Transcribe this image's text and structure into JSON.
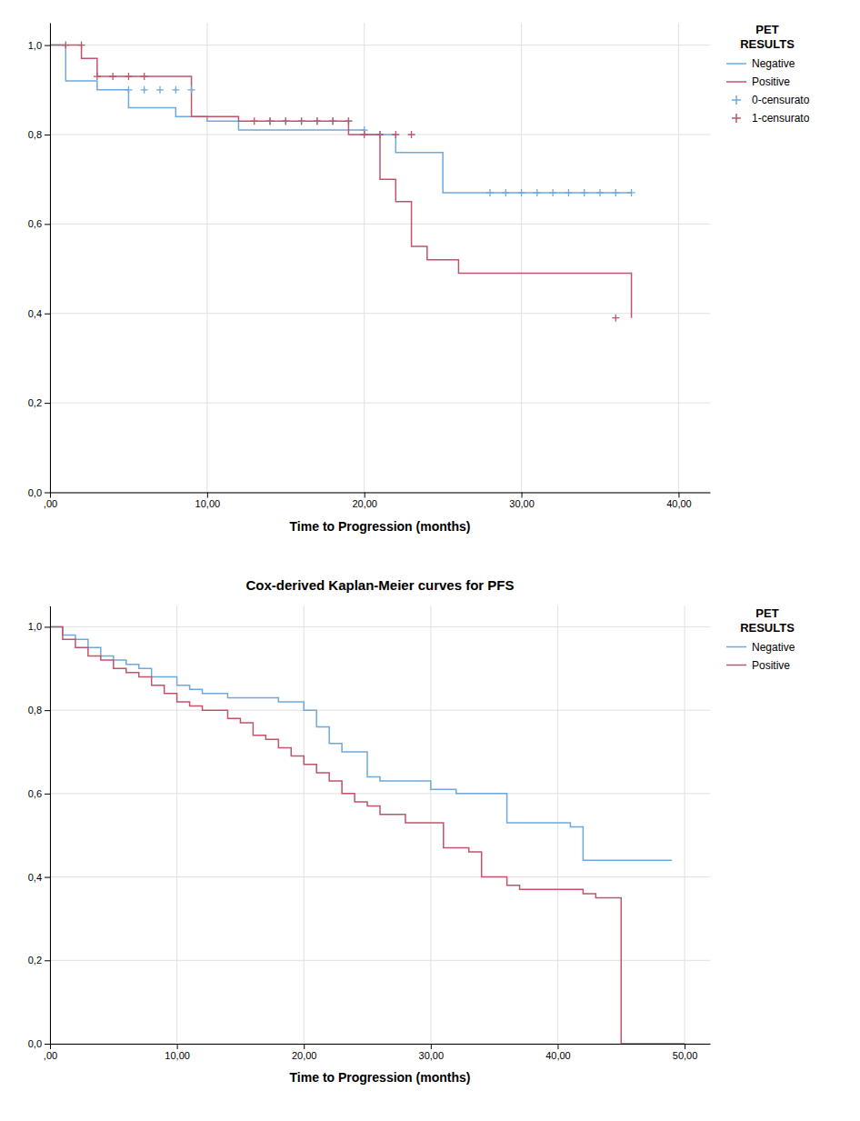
{
  "chart_data": [
    {
      "type": "step",
      "xlabel": "Time to Progression (months)",
      "xlim": [
        0,
        42
      ],
      "ylim": [
        0,
        1.05
      ],
      "xticks": [
        {
          "value": 0,
          "label": ",00"
        },
        {
          "value": 10,
          "label": "10,00"
        },
        {
          "value": 20,
          "label": "20,00"
        },
        {
          "value": 30,
          "label": "30,00"
        },
        {
          "value": 40,
          "label": "40,00"
        }
      ],
      "yticks": [
        {
          "value": 0.0,
          "label": "0,0"
        },
        {
          "value": 0.2,
          "label": "0,2"
        },
        {
          "value": 0.4,
          "label": "0,4"
        },
        {
          "value": 0.6,
          "label": "0,6"
        },
        {
          "value": 0.8,
          "label": "0,8"
        },
        {
          "value": 1.0,
          "label": "1,0"
        }
      ],
      "grid": true,
      "legend": "right",
      "legend_title": "PET\nRESULTS",
      "series": [
        {
          "name": "Negative",
          "color": "#6fa8dc",
          "x": [
            0,
            1,
            1,
            3,
            3,
            5,
            5,
            8,
            8,
            10,
            10,
            12,
            12,
            18,
            18,
            20,
            20,
            22,
            22,
            25,
            25,
            27,
            27,
            37
          ],
          "values": [
            1.0,
            1.0,
            0.92,
            0.92,
            0.9,
            0.9,
            0.86,
            0.86,
            0.84,
            0.84,
            0.83,
            0.83,
            0.81,
            0.81,
            0.81,
            0.81,
            0.8,
            0.8,
            0.76,
            0.76,
            0.67,
            0.67,
            0.67,
            0.67
          ]
        },
        {
          "name": "Positive",
          "color": "#c0546a",
          "x": [
            0,
            2,
            2,
            3,
            3,
            4,
            4,
            5,
            5,
            9,
            9,
            11,
            11,
            12,
            12,
            13,
            13,
            18,
            18,
            19,
            19,
            20,
            20,
            21,
            21,
            22,
            22,
            23,
            23,
            24,
            24,
            26,
            26,
            36,
            36,
            37
          ],
          "values": [
            1.0,
            1.0,
            0.97,
            0.97,
            0.93,
            0.93,
            0.93,
            0.93,
            0.93,
            0.93,
            0.84,
            0.84,
            0.84,
            0.84,
            0.83,
            0.83,
            0.83,
            0.83,
            0.83,
            0.83,
            0.8,
            0.8,
            0.8,
            0.8,
            0.7,
            0.7,
            0.65,
            0.65,
            0.55,
            0.55,
            0.52,
            0.52,
            0.49,
            0.49,
            0.49,
            0.39
          ]
        },
        {
          "name": "0-censurato",
          "type": "scatter",
          "marker": "plus",
          "color": "#6fa8dc",
          "x": [
            5,
            6,
            7,
            8,
            9,
            14,
            15,
            16,
            17,
            18,
            19,
            20,
            21,
            28,
            29,
            30,
            31,
            32,
            33,
            34,
            35,
            36,
            37
          ],
          "values": [
            0.9,
            0.9,
            0.9,
            0.9,
            0.9,
            0.83,
            0.83,
            0.83,
            0.83,
            0.83,
            0.83,
            0.81,
            0.8,
            0.67,
            0.67,
            0.67,
            0.67,
            0.67,
            0.67,
            0.67,
            0.67,
            0.67,
            0.67
          ]
        },
        {
          "name": "1-censurato",
          "type": "scatter",
          "marker": "plus",
          "color": "#c0546a",
          "x": [
            1,
            2,
            3,
            4,
            5,
            6,
            13,
            14,
            15,
            16,
            17,
            18,
            19,
            20,
            21,
            22,
            23,
            36
          ],
          "values": [
            1.0,
            1.0,
            0.93,
            0.93,
            0.93,
            0.93,
            0.83,
            0.83,
            0.83,
            0.83,
            0.83,
            0.83,
            0.83,
            0.8,
            0.8,
            0.8,
            0.8,
            0.39
          ]
        }
      ]
    },
    {
      "type": "step",
      "title": "Cox-derived Kaplan-Meier curves for PFS",
      "xlabel": "Time to Progression (months)",
      "xlim": [
        0,
        52
      ],
      "ylim": [
        0,
        1.05
      ],
      "xticks": [
        {
          "value": 0,
          "label": ",00"
        },
        {
          "value": 10,
          "label": "10,00"
        },
        {
          "value": 20,
          "label": "20,00"
        },
        {
          "value": 30,
          "label": "30,00"
        },
        {
          "value": 40,
          "label": "40,00"
        },
        {
          "value": 50,
          "label": "50,00"
        }
      ],
      "yticks": [
        {
          "value": 0.0,
          "label": "0,0"
        },
        {
          "value": 0.2,
          "label": "0,2"
        },
        {
          "value": 0.4,
          "label": "0,4"
        },
        {
          "value": 0.6,
          "label": "0,6"
        },
        {
          "value": 0.8,
          "label": "0,8"
        },
        {
          "value": 1.0,
          "label": "1,0"
        }
      ],
      "grid": true,
      "legend": "right",
      "legend_title": "PET\nRESULTS",
      "series": [
        {
          "name": "Negative",
          "color": "#6fa8dc",
          "x": [
            0,
            1,
            1,
            2,
            2,
            3,
            3,
            4,
            4,
            5,
            5,
            6,
            6,
            7,
            7,
            8,
            8,
            10,
            10,
            11,
            11,
            12,
            12,
            14,
            14,
            15,
            15,
            18,
            18,
            20,
            20,
            21,
            21,
            22,
            22,
            23,
            23,
            25,
            25,
            26,
            26,
            28,
            28,
            30,
            30,
            32,
            32,
            36,
            36,
            41,
            41,
            42,
            42,
            43,
            43,
            47,
            47,
            48,
            48,
            49
          ],
          "values": [
            1.0,
            1.0,
            0.98,
            0.98,
            0.97,
            0.97,
            0.95,
            0.95,
            0.93,
            0.93,
            0.92,
            0.92,
            0.91,
            0.91,
            0.9,
            0.9,
            0.88,
            0.88,
            0.86,
            0.86,
            0.85,
            0.85,
            0.84,
            0.84,
            0.83,
            0.83,
            0.83,
            0.83,
            0.82,
            0.82,
            0.8,
            0.8,
            0.76,
            0.76,
            0.72,
            0.72,
            0.7,
            0.7,
            0.64,
            0.64,
            0.63,
            0.63,
            0.63,
            0.63,
            0.61,
            0.61,
            0.6,
            0.6,
            0.53,
            0.53,
            0.52,
            0.52,
            0.44,
            0.44,
            0.44,
            0.44,
            0.44,
            0.44,
            0.44,
            0.44
          ]
        },
        {
          "name": "Positive",
          "color": "#c0546a",
          "x": [
            0,
            1,
            1,
            2,
            2,
            3,
            3,
            4,
            4,
            5,
            5,
            6,
            6,
            7,
            7,
            8,
            8,
            9,
            9,
            10,
            10,
            11,
            11,
            12,
            12,
            13,
            13,
            14,
            14,
            15,
            15,
            16,
            16,
            17,
            17,
            18,
            18,
            19,
            19,
            20,
            20,
            21,
            21,
            22,
            22,
            23,
            23,
            24,
            24,
            25,
            25,
            26,
            26,
            27,
            27,
            28,
            28,
            29,
            29,
            30,
            30,
            31,
            31,
            33,
            33,
            34,
            34,
            36,
            36,
            37,
            37,
            40,
            40,
            41,
            41,
            42,
            42,
            43,
            43,
            44,
            44,
            45,
            45,
            49,
            49,
            50
          ],
          "values": [
            1.0,
            1.0,
            0.97,
            0.97,
            0.95,
            0.95,
            0.93,
            0.93,
            0.92,
            0.92,
            0.9,
            0.9,
            0.89,
            0.89,
            0.88,
            0.88,
            0.86,
            0.86,
            0.84,
            0.84,
            0.82,
            0.82,
            0.81,
            0.81,
            0.8,
            0.8,
            0.8,
            0.8,
            0.78,
            0.78,
            0.77,
            0.77,
            0.74,
            0.74,
            0.73,
            0.73,
            0.71,
            0.71,
            0.69,
            0.69,
            0.67,
            0.67,
            0.65,
            0.65,
            0.63,
            0.63,
            0.6,
            0.6,
            0.58,
            0.58,
            0.57,
            0.57,
            0.55,
            0.55,
            0.55,
            0.55,
            0.53,
            0.53,
            0.53,
            0.53,
            0.53,
            0.53,
            0.47,
            0.47,
            0.46,
            0.46,
            0.4,
            0.4,
            0.38,
            0.38,
            0.37,
            0.37,
            0.37,
            0.37,
            0.37,
            0.37,
            0.36,
            0.36,
            0.35,
            0.35,
            0.35,
            0.35,
            0.0,
            0.0,
            0.0,
            0.0
          ]
        }
      ]
    }
  ]
}
